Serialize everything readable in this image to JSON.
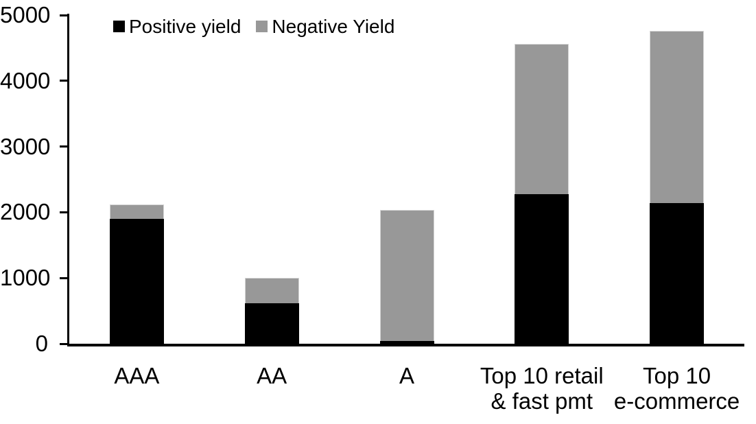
{
  "legend": {
    "items": [
      {
        "label": "Positive yield",
        "color": "#000000"
      },
      {
        "label": "Negative Yield",
        "color": "#989898"
      }
    ]
  },
  "y_axis": {
    "tick_labels": [
      "0",
      "1000",
      "2000",
      "3000",
      "4000",
      "5000"
    ]
  },
  "x_axis": {
    "labels": [
      [
        "AAA"
      ],
      [
        "AA"
      ],
      [
        "A"
      ],
      [
        "Top 10 retail",
        "& fast pmt"
      ],
      [
        "Top 10",
        "e-commerce"
      ]
    ]
  },
  "chart_data": {
    "type": "bar",
    "stacked": true,
    "categories": [
      "AAA",
      "AA",
      "A",
      "Top 10 retail & fast pmt",
      "Top 10 e-commerce"
    ],
    "series": [
      {
        "name": "Positive yield",
        "color": "#000000",
        "values": [
          1900,
          620,
          40,
          2280,
          2140
        ]
      },
      {
        "name": "Negative Yield",
        "color": "#989898",
        "values": [
          220,
          380,
          2000,
          2280,
          2620
        ]
      }
    ],
    "totals": [
      2120,
      1000,
      2040,
      4560,
      4760
    ],
    "ylim": [
      0,
      5000
    ],
    "yticks": [
      0,
      1000,
      2000,
      3000,
      4000,
      5000
    ],
    "grid": false,
    "legend_position": "top"
  }
}
